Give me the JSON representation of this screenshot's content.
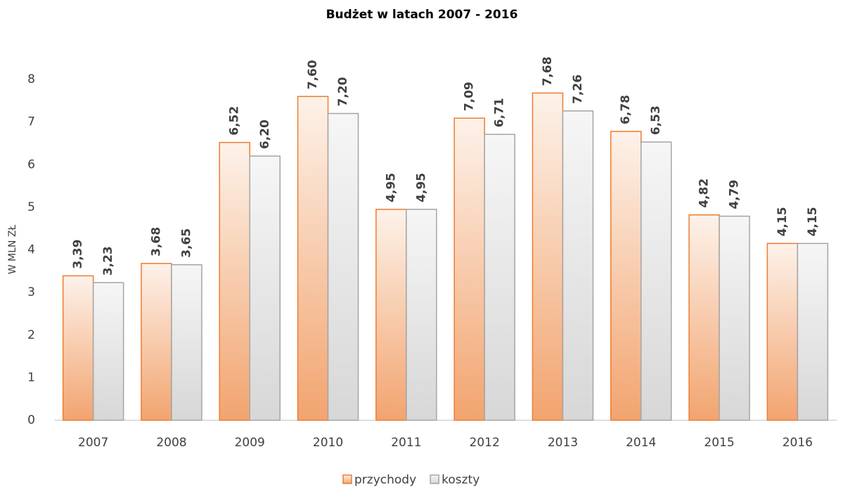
{
  "chart_data": {
    "type": "bar",
    "title": "Budżet w latach 2007 - 2016",
    "y_label": "W MLN ZŁ",
    "categories": [
      "2007",
      "2008",
      "2009",
      "2010",
      "2011",
      "2012",
      "2013",
      "2014",
      "2015",
      "2016"
    ],
    "series": [
      {
        "name": "przychody",
        "color": "#ed7d31",
        "values": [
          3.39,
          3.68,
          6.52,
          7.6,
          4.95,
          7.09,
          7.68,
          6.78,
          4.82,
          4.15
        ],
        "value_labels": [
          "3,39",
          "3,68",
          "6,52",
          "7,60",
          "4,95",
          "7,09",
          "7,68",
          "6,78",
          "4,82",
          "4,15"
        ]
      },
      {
        "name": "koszty",
        "color": "#a5a5a5",
        "values": [
          3.23,
          3.65,
          6.2,
          7.2,
          4.95,
          6.71,
          7.26,
          6.53,
          4.79,
          4.15
        ],
        "value_labels": [
          "3,23",
          "3,65",
          "6,20",
          "7,20",
          "4,95",
          "6,71",
          "7,26",
          "6,53",
          "4,79",
          "4,15"
        ]
      }
    ],
    "ylim": [
      0,
      8
    ],
    "yticks": [
      0,
      1,
      2,
      3,
      4,
      5,
      6,
      7,
      8
    ],
    "grid": false,
    "legend": "bottom"
  }
}
